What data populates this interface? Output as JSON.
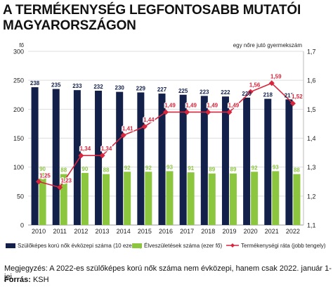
{
  "title_line1": "A TERMÉKENYSÉG LEGFONTOSABB MUTATÓI",
  "title_line2": "MAGYARORSZÁGON",
  "note": "Megjegyzés: A 2022-es szülőképes korú nők száma nem évközepi, hanem csak 2022. január 1-jei.",
  "source_label": "Forrás:",
  "source_value": "KSH",
  "colors": {
    "bar_dark": "#13204a",
    "bar_green": "#8cc63f",
    "line_red": "#d7263d",
    "grid": "#dddddd"
  },
  "chart_data": {
    "type": "bar",
    "categories": [
      "2010",
      "2011",
      "2012",
      "2013",
      "2014",
      "2015",
      "2016",
      "2017",
      "2018",
      "2019",
      "2020",
      "2021",
      "2022"
    ],
    "left_unit_label": "fő",
    "right_axis_label": "egy nőre jutó gyermekszám",
    "left_ylim": [
      0,
      300
    ],
    "left_ticks": [
      "0",
      "50",
      "100",
      "150",
      "200",
      "250",
      "300"
    ],
    "right_ylim": [
      1.1,
      1.7
    ],
    "right_ticks": [
      "1,1",
      "1,2",
      "1,3",
      "1,4",
      "1,5",
      "1,6",
      "1,7"
    ],
    "grid": true,
    "legend_position": "bottom",
    "series": [
      {
        "name": "Szülőképes korú nők évközepi száma (10 ezer fő)",
        "kind": "bar",
        "values": [
          238,
          235,
          233,
          232,
          230,
          229,
          227,
          225,
          223,
          222,
          220,
          218,
          217
        ],
        "labels": [
          "238",
          "235",
          "233",
          "232",
          "230",
          "229",
          "227",
          "225",
          "223",
          "222",
          "220",
          "218",
          "217"
        ]
      },
      {
        "name": "Élveszületések száma (ezer fő)",
        "kind": "bar",
        "values": [
          90,
          88,
          90,
          88,
          92,
          92,
          93,
          91,
          89,
          89,
          92,
          93,
          88
        ],
        "labels": [
          "90",
          "88",
          "90",
          "88",
          "92",
          "92",
          "93",
          "91",
          "89",
          "89",
          "92",
          "93",
          "88"
        ]
      },
      {
        "name": "Termékenységi ráta (jobb tengely)",
        "kind": "line",
        "axis": "right",
        "values": [
          1.25,
          1.23,
          1.34,
          1.34,
          1.41,
          1.44,
          1.49,
          1.49,
          1.49,
          1.49,
          1.56,
          1.59,
          1.52
        ],
        "labels": [
          "1,25",
          "1,23",
          "1,34",
          "1,34",
          "1,41",
          "1,44",
          "1,49",
          "1,49",
          "1,49",
          "1,49",
          "1,56",
          "1,59",
          "1,52"
        ]
      }
    ]
  }
}
